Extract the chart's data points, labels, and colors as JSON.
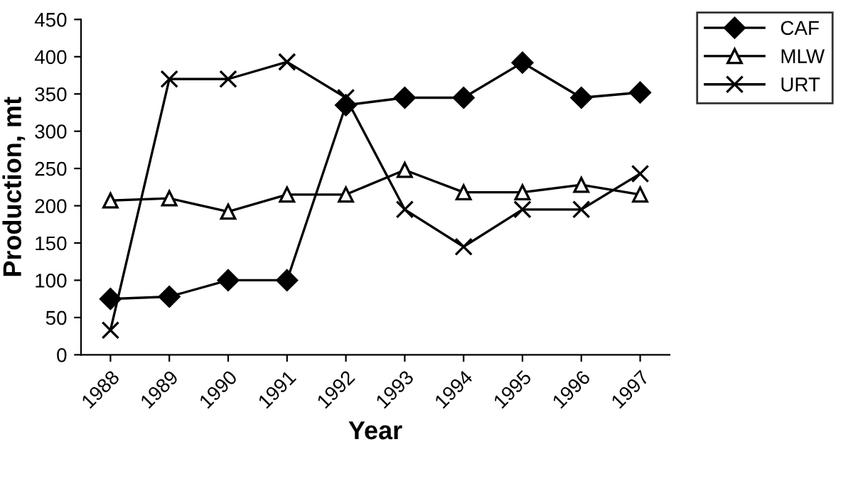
{
  "chart_data": {
    "type": "line",
    "xlabel": "Year",
    "ylabel": "Production, mt",
    "categories": [
      "1988",
      "1989",
      "1990",
      "1991",
      "1992",
      "1993",
      "1994",
      "1995",
      "1996",
      "1997"
    ],
    "series": [
      {
        "name": "CAF",
        "color": "#000000",
        "marker": "diamond",
        "values": [
          75,
          78,
          100,
          100,
          335,
          345,
          345,
          392,
          345,
          352
        ]
      },
      {
        "name": "MLW",
        "color": "#000000",
        "marker": "triangle",
        "values": [
          207,
          210,
          192,
          215,
          215,
          248,
          218,
          218,
          228,
          215
        ]
      },
      {
        "name": "URT",
        "color": "#000000",
        "marker": "cross",
        "values": [
          33,
          370,
          370,
          393,
          345,
          195,
          145,
          195,
          195,
          243
        ]
      }
    ],
    "ylim": [
      0,
      450
    ],
    "yticks": [
      0,
      50,
      100,
      150,
      200,
      250,
      300,
      350,
      400,
      450
    ],
    "grid": false,
    "legend": "top right",
    "line_style": "solid"
  }
}
